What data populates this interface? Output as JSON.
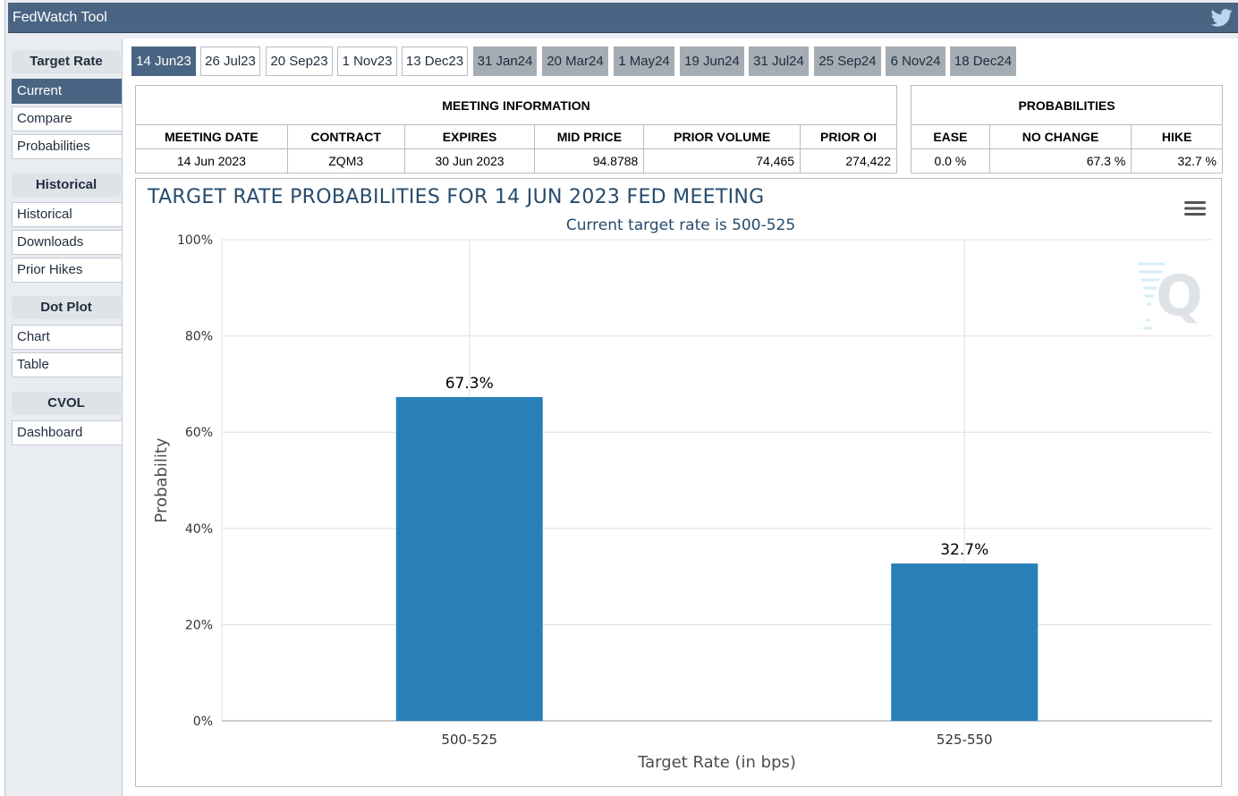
{
  "app": {
    "title": "FedWatch Tool"
  },
  "sidebar": {
    "groups": [
      {
        "header": "Target Rate",
        "items": [
          "Current",
          "Compare",
          "Probabilities"
        ]
      },
      {
        "header": "Historical",
        "items": [
          "Historical",
          "Downloads",
          "Prior Hikes"
        ]
      },
      {
        "header": "Dot Plot",
        "items": [
          "Chart",
          "Table"
        ]
      },
      {
        "header": "CVOL",
        "items": [
          "Dashboard"
        ]
      }
    ],
    "active_item": "Current"
  },
  "tabs": [
    "14 Jun23",
    "26 Jul23",
    "20 Sep23",
    "1 Nov23",
    "13 Dec23",
    "31 Jan24",
    "20 Mar24",
    "1 May24",
    "19 Jun24",
    "31 Jul24",
    "25 Sep24",
    "6 Nov24",
    "18 Dec24"
  ],
  "meeting_info": {
    "header": "MEETING INFORMATION",
    "columns": [
      "MEETING DATE",
      "CONTRACT",
      "EXPIRES",
      "MID PRICE",
      "PRIOR VOLUME",
      "PRIOR OI"
    ],
    "row": [
      "14 Jun 2023",
      "ZQM3",
      "30 Jun 2023",
      "94.8788",
      "74,465",
      "274,422"
    ]
  },
  "probabilities": {
    "header": "PROBABILITIES",
    "columns": [
      "EASE",
      "NO CHANGE",
      "HIKE"
    ],
    "row": [
      "0.0 %",
      "67.3 %",
      "32.7 %"
    ]
  },
  "chart_data": {
    "type": "bar",
    "title": "TARGET RATE PROBABILITIES FOR 14 JUN 2023 FED MEETING",
    "subtitle": "Current target rate is 500-525",
    "xlabel": "Target Rate (in bps)",
    "ylabel": "Probability",
    "categories": [
      "500-525",
      "525-550"
    ],
    "values": [
      67.3,
      32.7
    ],
    "data_labels": [
      "67.3%",
      "32.7%"
    ],
    "ylim": [
      0,
      100
    ],
    "yticks": [
      "0%",
      "20%",
      "40%",
      "60%",
      "80%",
      "100%"
    ],
    "grid": true,
    "bar_color": "#2980b9"
  },
  "colors": {
    "header_bg": "#4a6583",
    "accent": "#274b6d",
    "inactive_tab": "#a4acb4"
  }
}
